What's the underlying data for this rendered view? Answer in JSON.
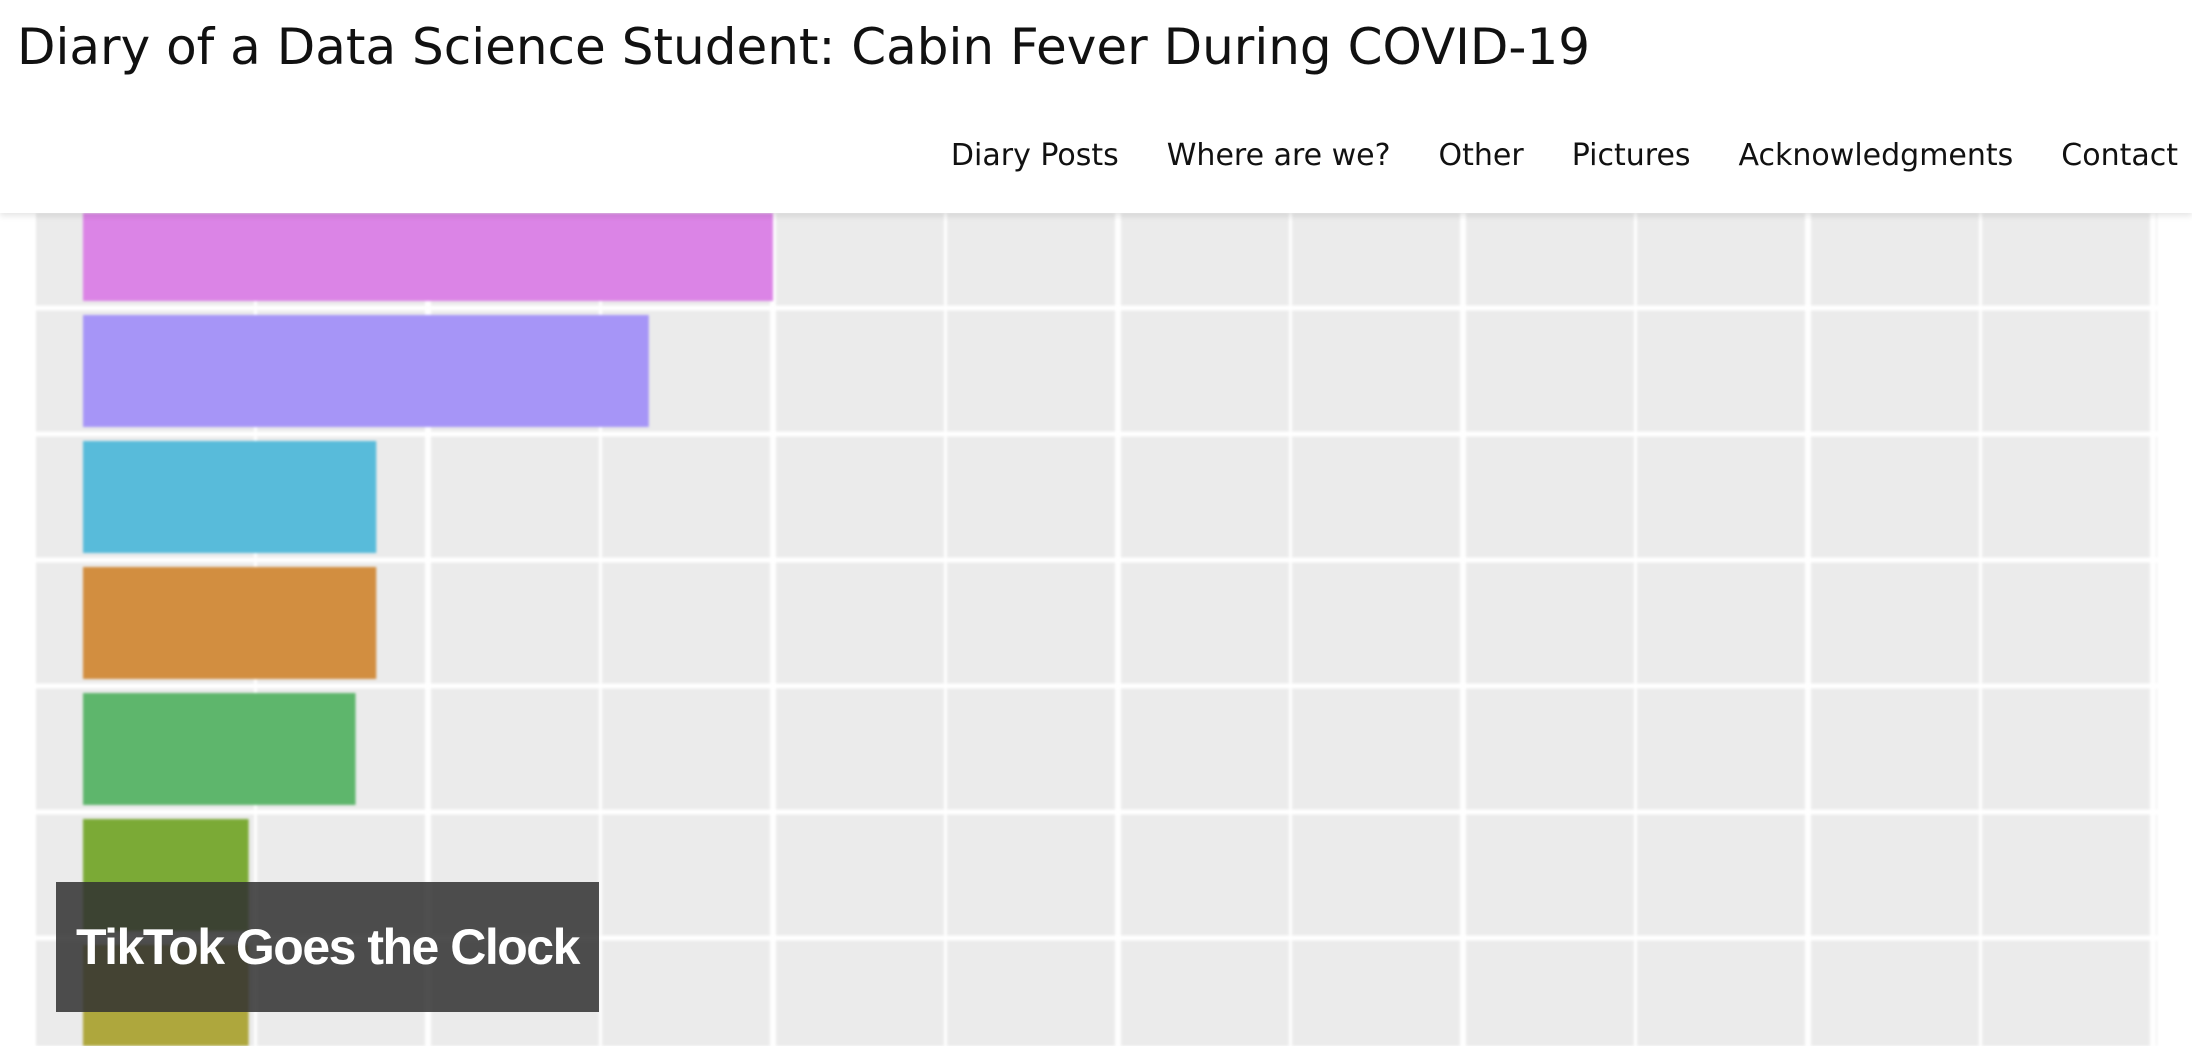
{
  "site": {
    "title": "Diary of a Data Science Student: Cabin Fever During COVID-19"
  },
  "nav": {
    "items": [
      {
        "label": "Diary Posts"
      },
      {
        "label": "Where are we?"
      },
      {
        "label": "Other"
      },
      {
        "label": "Pictures"
      },
      {
        "label": "Acknowledgments"
      },
      {
        "label": "Contact"
      }
    ]
  },
  "featured_post": {
    "title": "TikTok Goes the Clock"
  },
  "chart_data": {
    "type": "bar",
    "orientation": "horizontal",
    "panel_background": "#EBEBEB",
    "grid": true,
    "xlim": [
      0,
      6.1
    ],
    "series": [
      {
        "values": [
          2.0,
          1.64,
          0.85,
          0.85,
          0.79,
          0.48,
          0.48
        ]
      }
    ],
    "colors": [
      "#DB84E6",
      "#A695F7",
      "#58BBDA",
      "#D28E40",
      "#5EB66C",
      "#7BAA36",
      "#AEA73D"
    ]
  }
}
